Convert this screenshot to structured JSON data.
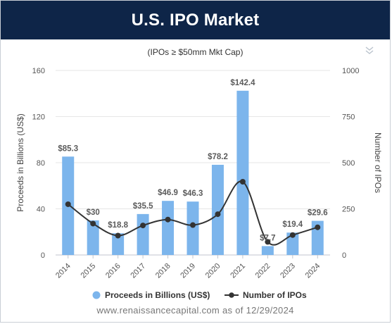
{
  "header": {
    "title": "U.S. IPO Market"
  },
  "footer": {
    "source_text": "www.renaissancecapital.com as of 12/29/2024"
  },
  "chart_data": {
    "type": "bar",
    "title": "U.S. IPO Market",
    "subtitle": "(IPOs ≥ $50mm Mkt Cap)",
    "categories": [
      "2014",
      "2015",
      "2016",
      "2017",
      "2018",
      "2019",
      "2020",
      "2021",
      "2022",
      "2023",
      "2024"
    ],
    "series": [
      {
        "name": "Proceeds in Billions (US$)",
        "type": "bar",
        "axis": "left",
        "color": "#7cb5ec",
        "values": [
          85.3,
          30,
          18.8,
          35.5,
          46.9,
          46.3,
          78.2,
          142.4,
          7.7,
          19.4,
          29.6
        ],
        "labels": [
          "$85.3",
          "$30",
          "$18.8",
          "$35.5",
          "$46.9",
          "$46.3",
          "$78.2",
          "$142.4",
          "$7.7",
          "$19.4",
          "$29.6"
        ]
      },
      {
        "name": "Number of IPOs",
        "type": "line",
        "axis": "right",
        "color": "#333333",
        "values": [
          275,
          170,
          105,
          160,
          192,
          162,
          221,
          397,
          71,
          108,
          150
        ]
      }
    ],
    "ylabel": "Proceeds in Billions (US$)",
    "ylabel_right": "Number of IPOs",
    "ylim": [
      0,
      160
    ],
    "ylim_right": [
      0,
      1000
    ],
    "yticks": [
      "0",
      "40",
      "80",
      "120",
      "160"
    ],
    "yticks_right": [
      "0",
      "250",
      "500",
      "750",
      "1000"
    ],
    "grid": true,
    "legend": "bottom-center"
  }
}
